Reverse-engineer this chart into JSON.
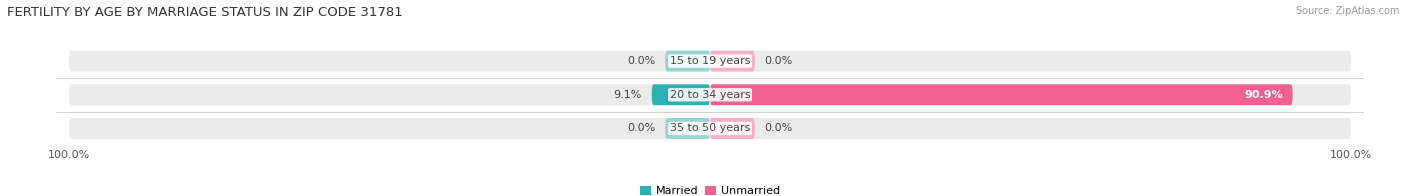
{
  "title": "FERTILITY BY AGE BY MARRIAGE STATUS IN ZIP CODE 31781",
  "source": "Source: ZipAtlas.com",
  "categories": [
    "15 to 19 years",
    "20 to 34 years",
    "35 to 50 years"
  ],
  "married": [
    0.0,
    9.1,
    0.0
  ],
  "unmarried": [
    0.0,
    90.9,
    0.0
  ],
  "married_color_strong": "#2eb0b0",
  "married_color_light": "#99d4d4",
  "unmarried_color_strong": "#f06090",
  "unmarried_color_light": "#f5b0c8",
  "bar_bg_color": "#ebebeb",
  "bar_height": 0.62,
  "max_val": 100.0,
  "zero_bar_width": 7.0,
  "legend_married": "Married",
  "legend_unmarried": "Unmarried",
  "title_fontsize": 9.5,
  "label_fontsize": 8,
  "axis_label_fontsize": 8,
  "source_fontsize": 7,
  "fig_bg_color": "#ffffff",
  "separator_color": "#d0d0d0",
  "text_color_dark": "#444444",
  "text_color_light": "#ffffff"
}
